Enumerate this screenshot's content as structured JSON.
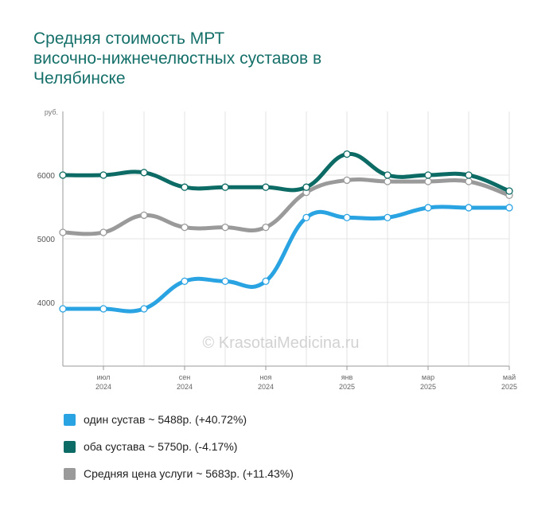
{
  "title_lines": [
    "Средняя стоимость МРТ",
    "височно-нижнечелюстных суставов в",
    "Челябинске"
  ],
  "watermark": "© KrasotaiMedicina.ru",
  "colors": {
    "accent": "#16706a",
    "grid": "#e3e3e3",
    "axis": "#999999"
  },
  "legend": [
    {
      "label": "один сустав ~ 5488р. (+40.72%)",
      "color": "#2aa3e2"
    },
    {
      "label": "оба сустава ~ 5750р. (-4.17%)",
      "color": "#0c6b64"
    },
    {
      "label": "Средняя цена услуги ~ 5683р. (+11.43%)",
      "color": "#9a9a9a"
    }
  ],
  "chart_data": {
    "type": "line",
    "title": "Средняя стоимость МРТ височно-нижнечелюстных суставов в Челябинске",
    "ylabel": "руб.",
    "ylim": [
      3000,
      7000
    ],
    "yticks": [
      4000,
      5000,
      6000
    ],
    "grid": true,
    "legend_position": "bottom",
    "x": [
      "2024-06",
      "2024-07",
      "2024-08",
      "2024-09",
      "2024-10",
      "2024-11",
      "2024-12",
      "2025-01",
      "2025-02",
      "2025-03",
      "2025-04",
      "2025-05"
    ],
    "xtick_labels": [
      {
        "index": 1,
        "month": "июл",
        "year": "2024"
      },
      {
        "index": 3,
        "month": "сен",
        "year": "2024"
      },
      {
        "index": 5,
        "month": "ноя",
        "year": "2024"
      },
      {
        "index": 7,
        "month": "янв",
        "year": "2025"
      },
      {
        "index": 9,
        "month": "мар",
        "year": "2025"
      },
      {
        "index": 11,
        "month": "май",
        "year": "2025"
      }
    ],
    "series": [
      {
        "name": "один сустав",
        "color": "#2aa3e2",
        "values": [
          3900,
          3900,
          3900,
          4333,
          4333,
          4333,
          5333,
          5333,
          5333,
          5488,
          5488,
          5488
        ]
      },
      {
        "name": "оба сустава",
        "color": "#0c6b64",
        "values": [
          6000,
          6000,
          6040,
          5810,
          5810,
          5810,
          5810,
          6330,
          6000,
          6000,
          6000,
          5750
        ]
      },
      {
        "name": "Средняя цена услуги",
        "color": "#9a9a9a",
        "values": [
          5100,
          5100,
          5370,
          5180,
          5180,
          5180,
          5730,
          5920,
          5900,
          5900,
          5900,
          5683
        ]
      }
    ]
  }
}
